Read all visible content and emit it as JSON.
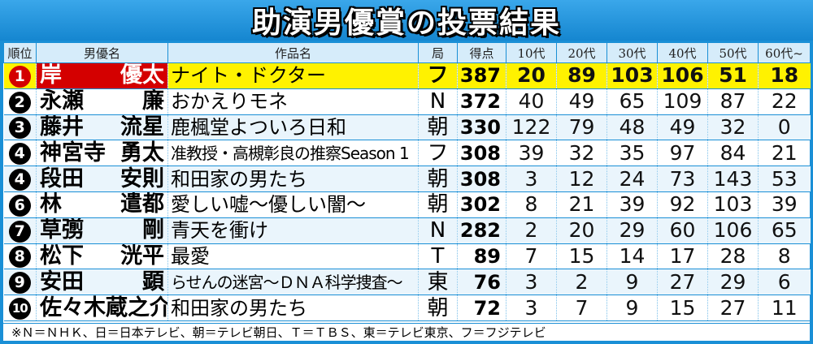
{
  "title": "助演男優賞の投票結果",
  "headers": [
    "順位",
    "男優名",
    "作品名",
    "局",
    "得点",
    "10代",
    "20代",
    "30代",
    "40代",
    "50代",
    "60代~"
  ],
  "rows": [
    {
      "rank": "1",
      "actor_family": "岸",
      "actor_given": "優太",
      "work": "ナイト・ドクター",
      "station": "フ",
      "points": "387",
      "ages": [
        "20",
        "89",
        "103",
        "106",
        "51",
        "18"
      ]
    },
    {
      "rank": "2",
      "actor_family": "永瀬",
      "actor_given": "廉",
      "work": "おかえりモネ",
      "station": "N",
      "points": "372",
      "ages": [
        "40",
        "49",
        "65",
        "109",
        "87",
        "22"
      ]
    },
    {
      "rank": "3",
      "actor_family": "藤井",
      "actor_given": "流星",
      "work": "鹿楓堂よついろ日和",
      "station": "朝",
      "points": "330",
      "ages": [
        "122",
        "79",
        "48",
        "49",
        "32",
        "0"
      ]
    },
    {
      "rank": "4",
      "actor_family": "神宮寺",
      "actor_given": "勇太",
      "work": "准教授・高槻彰良の推察Season 1",
      "station": "フ",
      "points": "308",
      "ages": [
        "39",
        "32",
        "35",
        "97",
        "84",
        "21"
      ]
    },
    {
      "rank": "4",
      "actor_family": "段田",
      "actor_given": "安則",
      "work": "和田家の男たち",
      "station": "朝",
      "points": "308",
      "ages": [
        "3",
        "12",
        "24",
        "73",
        "143",
        "53"
      ]
    },
    {
      "rank": "6",
      "actor_family": "林",
      "actor_given": "遣都",
      "work": "愛しい嘘～優しい闇～",
      "station": "朝",
      "points": "302",
      "ages": [
        "8",
        "21",
        "39",
        "92",
        "103",
        "39"
      ]
    },
    {
      "rank": "7",
      "actor_family": "草彅",
      "actor_given": "剛",
      "work": "青天を衝け",
      "station": "N",
      "points": "282",
      "ages": [
        "2",
        "20",
        "29",
        "60",
        "106",
        "65"
      ]
    },
    {
      "rank": "8",
      "actor_family": "松下",
      "actor_given": "洸平",
      "work": "最愛",
      "station": "T",
      "points": "89",
      "ages": [
        "7",
        "15",
        "14",
        "17",
        "28",
        "8"
      ]
    },
    {
      "rank": "9",
      "actor_family": "安田",
      "actor_given": "顕",
      "work": "らせんの迷宮～ＤＮＡ科学捜査～",
      "station": "東",
      "points": "76",
      "ages": [
        "3",
        "2",
        "9",
        "27",
        "29",
        "6"
      ]
    },
    {
      "rank": "10",
      "actor_family": "佐々木蔵之介",
      "actor_given": "",
      "work": "和田家の男たち",
      "station": "朝",
      "points": "72",
      "ages": [
        "3",
        "7",
        "9",
        "15",
        "27",
        "11"
      ]
    }
  ],
  "footnote": "※Ｎ＝ＮＨＫ、日＝日本テレビ、朝＝テレビ朝日、Ｔ＝ＴＢＳ、東＝テレビ東京、フ＝フジテレビ",
  "colors": {
    "frame": "#1a8fd6",
    "highlight_row": "#fff200",
    "highlight_name": "#d40000",
    "header_bg": "#d6ecfa"
  }
}
